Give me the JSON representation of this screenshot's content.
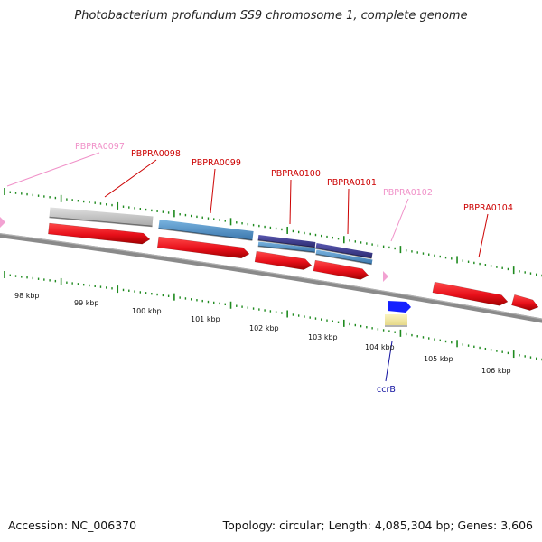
{
  "title": "Photobacterium profundum SS9 chromosome 1, complete genome",
  "footer": {
    "accession": "Accession: NC_006370",
    "summary": "Topology: circular; Length: 4,085,304 bp; Genes: 3,606"
  },
  "colors": {
    "gene_red": "#e8101a",
    "gene_blue": "#4f8fc4",
    "gene_purple": "#3b3a8c",
    "gene_gray": "#bdbdbd",
    "pseudo_pink": "#f2a2d2",
    "backbone": "#7a7a7a",
    "tick_green": "#1e8a1e",
    "label_red": "#cc0000",
    "label_pink": "#f090c8",
    "label_blue": "#1010a0",
    "ccrb_blue": "#1420ff",
    "ccrb_yellow": "#f4eaa0"
  },
  "scale_labels": [
    "98 kbp",
    "99 kbp",
    "100 kbp",
    "101 kbp",
    "102 kbp",
    "103 kbp",
    "104 kbp",
    "105 kbp",
    "106 kbp"
  ],
  "locus_labels": [
    {
      "text": "PBPRA0097",
      "style": "pink"
    },
    {
      "text": "PBPRA0098",
      "style": "red"
    },
    {
      "text": "PBPRA0099",
      "style": "red"
    },
    {
      "text": "PBPRA0100",
      "style": "red"
    },
    {
      "text": "PBPRA0101",
      "style": "red"
    },
    {
      "text": "PBPRA0102",
      "style": "pink"
    },
    {
      "text": "PBPRA0104",
      "style": "red"
    },
    {
      "text": "ccrB",
      "style": "blue"
    }
  ]
}
